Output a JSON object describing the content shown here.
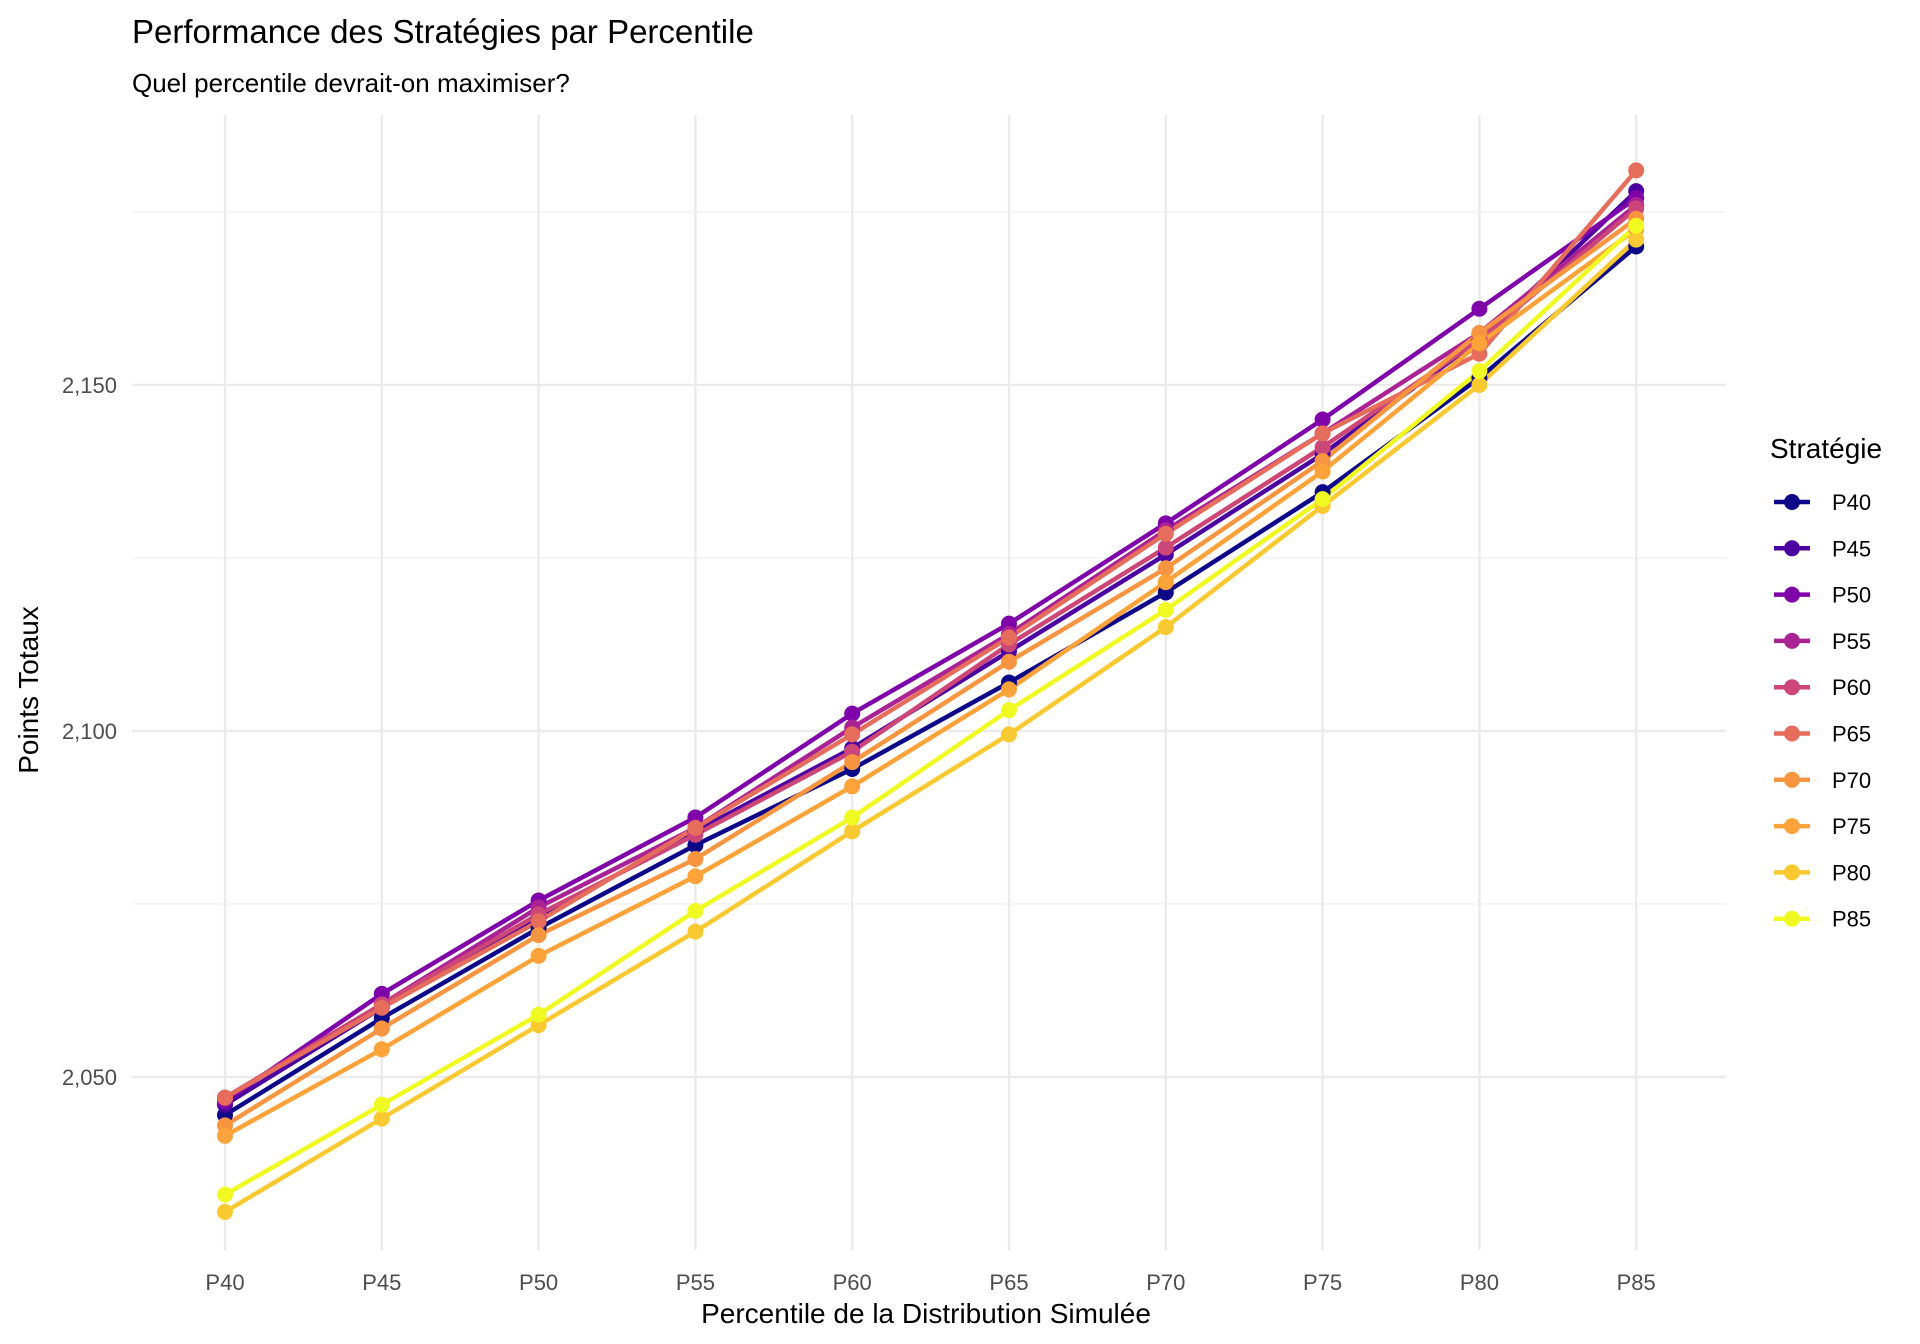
{
  "chart_data": {
    "type": "line",
    "title": "Performance des Stratégies par Percentile",
    "subtitle": "Quel percentile devrait-on maximiser?",
    "xlabel": "Percentile de la Distribution Simulée",
    "ylabel": "Points Totaux",
    "ylim": [
      2025,
      2189
    ],
    "yticks": [
      2050,
      2100,
      2150
    ],
    "ytick_labels": [
      "2,050",
      "2,100",
      "2,150"
    ],
    "grid": true,
    "legend": {
      "title": "Stratégie",
      "placement": "right"
    },
    "categories": [
      "P40",
      "P45",
      "P50",
      "P55",
      "P60",
      "P65",
      "P70",
      "P75",
      "P80",
      "P85"
    ],
    "series": [
      {
        "name": "P40",
        "color": "#0D0887",
        "values": [
          2044.5,
          2058.5,
          2071.5,
          2083.5,
          2094.5,
          2107.0,
          2120.0,
          2134.5,
          2151.0,
          2170.0
        ]
      },
      {
        "name": "P45",
        "color": "#4C02A1",
        "values": [
          2046.0,
          2060.0,
          2073.0,
          2085.5,
          2097.5,
          2111.5,
          2125.5,
          2140.0,
          2156.5,
          2178.0
        ]
      },
      {
        "name": "P50",
        "color": "#7E03A8",
        "values": [
          2046.5,
          2062.0,
          2075.5,
          2087.5,
          2102.5,
          2115.5,
          2130.0,
          2145.0,
          2161.0,
          2177.0
        ]
      },
      {
        "name": "P55",
        "color": "#A92395",
        "values": [
          2047.0,
          2060.5,
          2074.5,
          2086.0,
          2100.5,
          2114.0,
          2129.0,
          2143.0,
          2157.5,
          2176.0
        ]
      },
      {
        "name": "P60",
        "color": "#CC4778",
        "values": [
          2047.0,
          2060.5,
          2073.5,
          2085.0,
          2097.0,
          2112.5,
          2126.5,
          2141.0,
          2156.5,
          2175.5
        ]
      },
      {
        "name": "P65",
        "color": "#E66C5C",
        "values": [
          2047.0,
          2060.0,
          2072.5,
          2086.0,
          2099.5,
          2113.5,
          2128.5,
          2143.0,
          2154.5,
          2181.0
        ]
      },
      {
        "name": "P70",
        "color": "#F89540",
        "values": [
          2043.0,
          2057.0,
          2070.5,
          2081.5,
          2095.5,
          2110.0,
          2123.5,
          2139.0,
          2157.5,
          2174.0
        ]
      },
      {
        "name": "P75",
        "color": "#FDA33A",
        "values": [
          2041.5,
          2054.0,
          2067.5,
          2079.0,
          2092.0,
          2106.0,
          2121.5,
          2137.5,
          2156.0,
          2172.5
        ]
      },
      {
        "name": "P80",
        "color": "#F9C932",
        "values": [
          2030.5,
          2044.0,
          2057.5,
          2071.0,
          2085.5,
          2099.5,
          2115.0,
          2132.5,
          2150.0,
          2171.0
        ]
      },
      {
        "name": "P85",
        "color": "#F0F921",
        "values": [
          2033.0,
          2046.0,
          2059.0,
          2074.0,
          2087.5,
          2103.0,
          2117.5,
          2133.5,
          2152.0,
          2173.0
        ]
      }
    ]
  }
}
